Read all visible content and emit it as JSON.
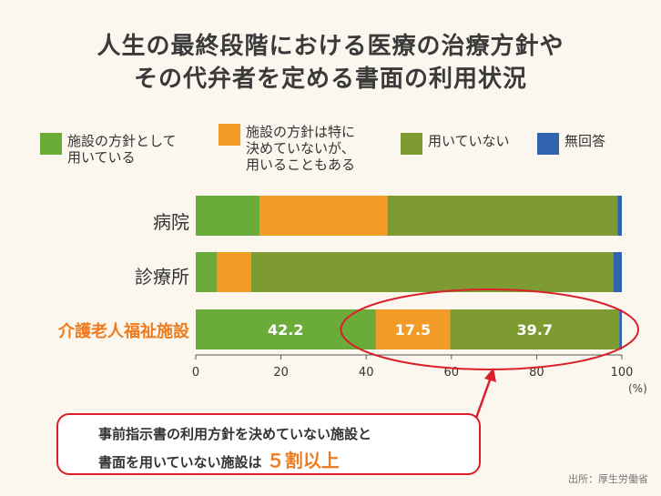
{
  "title_line1": "人生の最終段階における医療の治療方針や",
  "title_line2": "その代弁者を定める書面の利用状況",
  "legend": [
    {
      "label": "施設の方針として\n用いている",
      "color": "#6aab3a"
    },
    {
      "label": "施設の方針は特に\n決めていないが、\n用いることもある",
      "color": "#f29b26"
    },
    {
      "label": "用いていない",
      "color": "#7d9b30"
    },
    {
      "label": "無回答",
      "color": "#2f63ad"
    }
  ],
  "chart_data": {
    "type": "bar",
    "orientation": "horizontal",
    "stacked": true,
    "categories": [
      "病院",
      "診療所",
      "介護老人福祉施設"
    ],
    "series": [
      {
        "name": "施設の方針として用いている",
        "values": [
          15,
          5,
          42.2
        ]
      },
      {
        "name": "施設の方針は特に決めていないが、用いることもある",
        "values": [
          30,
          8,
          17.5
        ]
      },
      {
        "name": "用いていない",
        "values": [
          54,
          85,
          39.7
        ]
      },
      {
        "name": "無回答",
        "values": [
          1,
          2,
          0.6
        ]
      }
    ],
    "data_labels": [
      "42.2",
      "17.5",
      "39.7"
    ],
    "xlim": [
      0,
      100
    ],
    "xticks": [
      "0",
      "20",
      "40",
      "60",
      "80",
      "100"
    ],
    "xunit": "(%)"
  },
  "callout": {
    "line1": "事前指示書の利用方針を決めていない施設と",
    "line2_prefix": "書面を用いていない施設は",
    "line2_highlight": "５割以上"
  },
  "source": "出所：厚生労働省"
}
